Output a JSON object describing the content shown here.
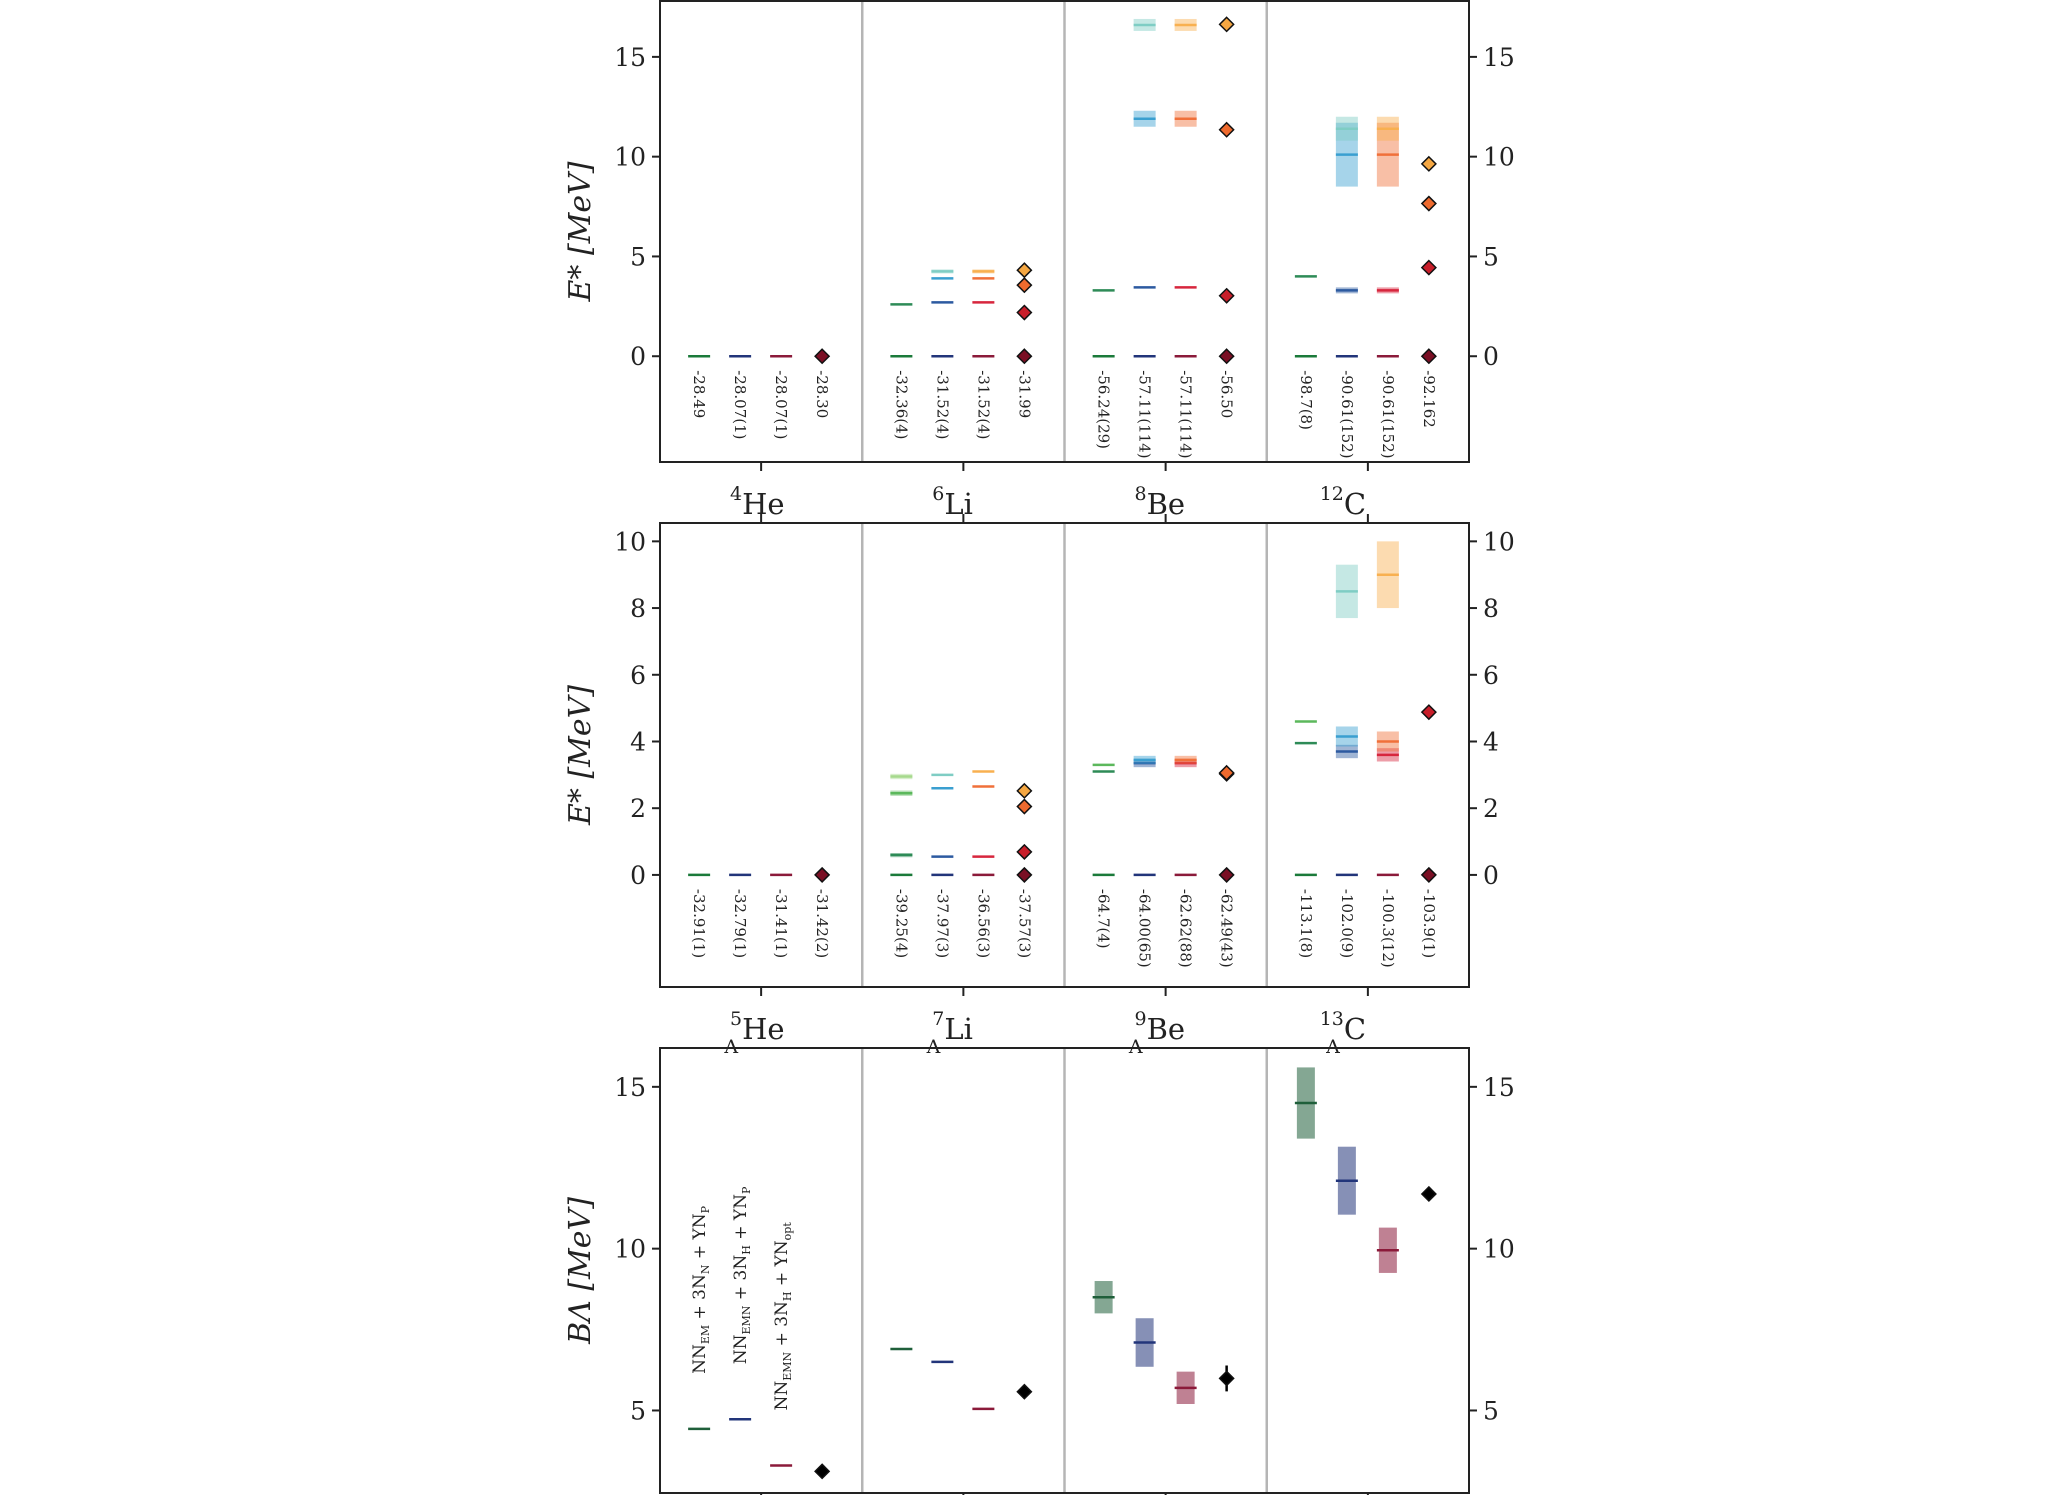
{
  "chart_data": [
    {
      "type": "level-scheme",
      "ylabel": "E* [MeV]",
      "ylim": [
        -5.3,
        17.8
      ],
      "yticks": [
        0,
        5,
        10,
        15
      ],
      "categories": [
        "⁴He",
        "⁶Li",
        "⁸Be",
        "¹²C"
      ],
      "category_parts": [
        [
          "4",
          "",
          "He"
        ],
        [
          "6",
          "",
          "Li"
        ],
        [
          "8",
          "",
          "Be"
        ],
        [
          "12",
          "",
          "C"
        ]
      ],
      "ground_state_labels": [
        [
          "-28.49",
          "-28.07(1)",
          "-28.07(1)",
          "-28.30"
        ],
        [
          "-32.36(4)",
          "-31.52(4)",
          "-31.52(4)",
          "-31.99"
        ],
        [
          "-56.24(29)",
          "-57.11(114)",
          "-57.11(114)",
          "-56.50"
        ],
        [
          "-98.7(8)",
          "-90.61(152)",
          "-90.61(152)",
          "-92.162"
        ]
      ],
      "levels": [
        [
          [
            [
              0,
              0,
              "#1b7a3a"
            ]
          ],
          [
            [
              0,
              0,
              "#22357a"
            ]
          ],
          [
            [
              0,
              0,
              "#8b1a3a"
            ]
          ],
          [
            [
              0,
              0,
              "#7a0f24"
            ]
          ]
        ],
        [
          [
            [
              0,
              0,
              "#1b7a3a"
            ],
            [
              2.6,
              0,
              "#2e8b57"
            ]
          ],
          [
            [
              0,
              0,
              "#22357a"
            ],
            [
              2.7,
              0,
              "#2c5aa0"
            ],
            [
              3.9,
              0,
              "#3a9fd0"
            ],
            [
              4.25,
              0.1,
              "#7fcdc4"
            ]
          ],
          [
            [
              0,
              0,
              "#8b1a3a"
            ],
            [
              2.7,
              0,
              "#d7263d"
            ],
            [
              3.9,
              0,
              "#f0703a"
            ],
            [
              4.25,
              0.1,
              "#f8b050"
            ]
          ],
          [
            [
              0,
              0,
              "#7a0f24"
            ],
            [
              2.19,
              0,
              "#c81e2a"
            ],
            [
              3.56,
              0,
              "#ee6a2e"
            ],
            [
              4.31,
              0,
              "#f5a742"
            ]
          ]
        ],
        [
          [
            [
              0,
              0,
              "#1b7a3a"
            ],
            [
              3.3,
              0,
              "#2e8b57"
            ]
          ],
          [
            [
              0,
              0,
              "#22357a"
            ],
            [
              3.45,
              0,
              "#2c5aa0"
            ],
            [
              11.9,
              0.4,
              "#3a9fd0"
            ],
            [
              16.6,
              0.3,
              "#7fcdc4"
            ]
          ],
          [
            [
              0,
              0,
              "#8b1a3a"
            ],
            [
              3.45,
              0,
              "#d7263d"
            ],
            [
              11.9,
              0.4,
              "#f0703a"
            ],
            [
              16.6,
              0.3,
              "#f8b050"
            ]
          ],
          [
            [
              0,
              0,
              "#7a0f24"
            ],
            [
              3.03,
              0,
              "#c81e2a"
            ],
            [
              11.35,
              0,
              "#ee6a2e"
            ],
            [
              16.63,
              0,
              "#f5a742"
            ]
          ]
        ],
        [
          [
            [
              0,
              0,
              "#1b7a3a"
            ],
            [
              4.0,
              0,
              "#2e8b57"
            ]
          ],
          [
            [
              0,
              0,
              "#22357a"
            ],
            [
              3.3,
              0.15,
              "#2c5aa0"
            ],
            [
              10.1,
              1.6,
              "#3a9fd0"
            ],
            [
              11.4,
              0.6,
              "#7fcdc4"
            ]
          ],
          [
            [
              0,
              0,
              "#8b1a3a"
            ],
            [
              3.3,
              0.15,
              "#d7263d"
            ],
            [
              10.1,
              1.6,
              "#f0703a"
            ],
            [
              11.4,
              0.6,
              "#f8b050"
            ]
          ],
          [
            [
              0,
              0,
              "#7a0f24"
            ],
            [
              4.44,
              0,
              "#c81e2a"
            ],
            [
              7.65,
              0,
              "#ee6a2e"
            ],
            [
              9.64,
              0,
              "#f5a742"
            ]
          ]
        ]
      ]
    },
    {
      "type": "level-scheme",
      "ylabel": "E* [MeV]",
      "ylim": [
        -3.36,
        10.55
      ],
      "yticks": [
        0,
        2,
        4,
        6,
        8,
        10
      ],
      "categories": [
        "⁵ΛHe",
        "⁷ΛLi",
        "⁹ΛBe",
        "¹³ΛC"
      ],
      "category_parts": [
        [
          "5",
          "Λ",
          "He"
        ],
        [
          "7",
          "Λ",
          "Li"
        ],
        [
          "9",
          "Λ",
          "Be"
        ],
        [
          "13",
          "Λ",
          "C"
        ]
      ],
      "ground_state_labels": [
        [
          "-32.91(1)",
          "-32.79(1)",
          "-31.41(1)",
          "-31.42(2)"
        ],
        [
          "-39.25(4)",
          "-37.97(3)",
          "-36.56(3)",
          "-37.57(3)"
        ],
        [
          "-64.7(4)",
          "-64.00(65)",
          "-62.62(88)",
          "-62.49(43)"
        ],
        [
          "-113.1(8)",
          "-102.0(9)",
          "-100.3(12)",
          "-103.9(1)"
        ]
      ],
      "levels": [
        [
          [
            [
              0,
              0,
              "#1b7a3a"
            ]
          ],
          [
            [
              0,
              0,
              "#22357a"
            ]
          ],
          [
            [
              0,
              0,
              "#8b1a3a"
            ]
          ],
          [
            [
              0,
              0,
              "#7a0f24"
            ]
          ]
        ],
        [
          [
            [
              0,
              0,
              "#1b7a3a"
            ],
            [
              0.6,
              0.05,
              "#2e8b57"
            ],
            [
              2.45,
              0.08,
              "#5cb85c"
            ],
            [
              2.95,
              0.08,
              "#a6d98c"
            ]
          ],
          [
            [
              0,
              0,
              "#22357a"
            ],
            [
              0.55,
              0,
              "#2c5aa0"
            ],
            [
              2.6,
              0,
              "#3a9fd0"
            ],
            [
              3.0,
              0,
              "#7fcdc4"
            ]
          ],
          [
            [
              0,
              0,
              "#8b1a3a"
            ],
            [
              0.55,
              0,
              "#d7263d"
            ],
            [
              2.65,
              0,
              "#f0703a"
            ],
            [
              3.1,
              0,
              "#f8b050"
            ]
          ],
          [
            [
              0,
              0,
              "#7a0f24"
            ],
            [
              0.69,
              0,
              "#c81e2a"
            ],
            [
              2.05,
              0,
              "#ee6a2e"
            ],
            [
              2.52,
              0,
              "#f5a742"
            ]
          ]
        ],
        [
          [
            [
              0,
              0,
              "#1b7a3a"
            ],
            [
              3.1,
              0,
              "#2e8b57"
            ],
            [
              3.3,
              0,
              "#5cb85c"
            ]
          ],
          [
            [
              0,
              0,
              "#22357a"
            ],
            [
              3.35,
              0.12,
              "#2c5aa0"
            ],
            [
              3.45,
              0.12,
              "#3a9fd0"
            ]
          ],
          [
            [
              0,
              0,
              "#8b1a3a"
            ],
            [
              3.35,
              0.12,
              "#d7263d"
            ],
            [
              3.45,
              0.12,
              "#f0703a"
            ]
          ],
          [
            [
              0,
              0,
              "#7a0f24"
            ],
            [
              3.03,
              0,
              "#c81e2a"
            ],
            [
              3.06,
              0,
              "#ee6a2e"
            ]
          ]
        ],
        [
          [
            [
              0,
              0,
              "#1b7a3a"
            ],
            [
              3.95,
              0,
              "#2e8b57"
            ],
            [
              4.6,
              0,
              "#5cb85c"
            ]
          ],
          [
            [
              0,
              0,
              "#22357a"
            ],
            [
              3.7,
              0.2,
              "#2c5aa0"
            ],
            [
              4.15,
              0.3,
              "#3a9fd0"
            ],
            [
              8.5,
              0.8,
              "#7fcdc4"
            ]
          ],
          [
            [
              0,
              0,
              "#8b1a3a"
            ],
            [
              3.6,
              0.2,
              "#d7263d"
            ],
            [
              4.0,
              0.3,
              "#f0703a"
            ],
            [
              9.0,
              1.0,
              "#f8b050"
            ]
          ],
          [
            [
              0,
              0,
              "#7a0f24"
            ],
            [
              4.88,
              0,
              "#c81e2a"
            ]
          ]
        ]
      ]
    },
    {
      "type": "scatter-errorbar",
      "ylabel": "BΛ [MeV]",
      "ylim": [
        2.45,
        16.2
      ],
      "yticks": [
        5,
        10,
        15
      ],
      "categories": [
        "⁵ΛHe",
        "⁷ΛLi",
        "⁹ΛBe",
        "¹³ΛC"
      ],
      "series": [
        {
          "name": "NN_EM + 3N_N + YN_P",
          "name_parts": [
            "NN",
            "EM",
            " + 3N",
            "N",
            " + YN",
            "P"
          ],
          "color": "#1f5f3a",
          "values": [
            4.43,
            6.9,
            8.5,
            14.5
          ],
          "errors": [
            0,
            0,
            0.5,
            1.1
          ]
        },
        {
          "name": "NN_EMN + 3N_H + YN_P",
          "name_parts": [
            "NN",
            "EMN",
            " + 3N",
            "H",
            " + YN",
            "P"
          ],
          "color": "#22357a",
          "values": [
            4.73,
            6.5,
            7.1,
            12.1
          ],
          "errors": [
            0,
            0,
            0.75,
            1.05
          ]
        },
        {
          "name": "NN_EMN + 3N_H + YN_opt",
          "name_parts": [
            "NN",
            "EMN",
            " + 3N",
            "H",
            " + YN",
            "opt"
          ],
          "color": "#8b1a3a",
          "values": [
            3.3,
            5.05,
            5.7,
            9.95
          ],
          "errors": [
            0,
            0,
            0.5,
            0.7
          ]
        },
        {
          "name": "",
          "color": "#000000",
          "marker": "diamond",
          "values": [
            3.12,
            5.58,
            5.99,
            11.69
          ],
          "errors": [
            0,
            0,
            0.4,
            0.1
          ]
        }
      ]
    }
  ]
}
